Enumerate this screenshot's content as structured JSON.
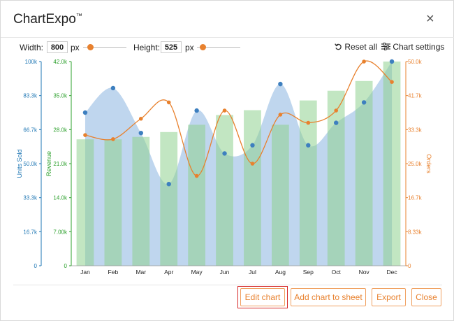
{
  "dialog": {
    "title": "ChartExpo",
    "title_mark": "™",
    "close_glyph": "×"
  },
  "toolbar": {
    "width_label": "Width:",
    "width_value": "800",
    "width_unit": "px",
    "height_label": "Height:",
    "height_value": "525",
    "height_unit": "px",
    "reset_label": "Reset all",
    "settings_label": "Chart settings",
    "reset_icon": "undo-icon",
    "settings_icon": "sliders-icon"
  },
  "footer": {
    "edit_label": "Edit chart",
    "add_label": "Add chart to sheet",
    "export_label": "Export",
    "close_label": "Close"
  },
  "colors": {
    "accent": "#e8812e",
    "units_axis": "#1f77b4",
    "revenue_axis": "#2ca02c",
    "orders_axis": "#e8812e",
    "area_fill": "#a9c8e8",
    "bar_fill": "#8fd18f",
    "edit_highlight": "#d62828"
  },
  "chart_data": {
    "type": "combo",
    "categories": [
      "Jan",
      "Feb",
      "Mar",
      "Apr",
      "May",
      "Jun",
      "Jul",
      "Aug",
      "Sep",
      "Oct",
      "Nov",
      "Dec"
    ],
    "series": [
      {
        "name": "Units Sold",
        "kind": "area",
        "axis": "left-outer",
        "values": [
          75000,
          87000,
          65000,
          40000,
          76000,
          55000,
          59000,
          89000,
          59000,
          70000,
          80000,
          100000
        ]
      },
      {
        "name": "Revenue",
        "kind": "bar",
        "axis": "left-inner",
        "values": [
          26000,
          26000,
          26500,
          27500,
          29000,
          31000,
          32000,
          29000,
          34000,
          36000,
          38000,
          42000
        ]
      },
      {
        "name": "Orders",
        "kind": "line",
        "axis": "right",
        "values": [
          32000,
          31000,
          36000,
          40000,
          22000,
          38000,
          25000,
          37000,
          35000,
          38000,
          50000,
          45000
        ]
      }
    ],
    "axes": {
      "left_outer": {
        "label": "Units Sold",
        "min": 0,
        "max": 100000,
        "ticks": [
          "0",
          "16.7k",
          "33.3k",
          "50.0k",
          "66.7k",
          "83.3k",
          "100k"
        ]
      },
      "left_inner": {
        "label": "Revenue",
        "min": 0,
        "max": 42000,
        "ticks": [
          "0",
          "7.00k",
          "14.0k",
          "21.0k",
          "28.0k",
          "35.0k",
          "42.0k"
        ]
      },
      "right": {
        "label": "Orders",
        "min": 0,
        "max": 50000,
        "ticks": [
          "0",
          "8.33k",
          "16.7k",
          "25.0k",
          "33.3k",
          "41.7k",
          "50.0k"
        ]
      }
    }
  }
}
